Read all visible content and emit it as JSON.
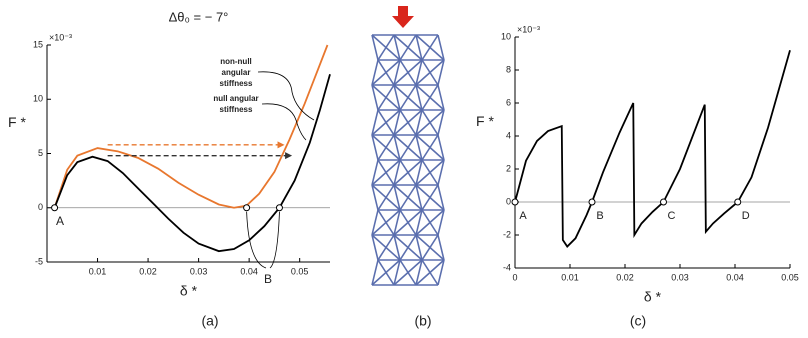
{
  "panels": [
    "(a)",
    "(b)",
    "(c)"
  ],
  "chart_data": [
    {
      "type": "line",
      "title": "Δθ₀ = − 7°",
      "y_multiplier": "×10⁻³",
      "xlabel": "δ *",
      "ylabel": "F *",
      "xlim": [
        0,
        0.056
      ],
      "ylim": [
        -5,
        15
      ],
      "xticks": [
        0.01,
        0.02,
        0.03,
        0.04,
        0.05
      ],
      "yticks": [
        -5,
        0,
        5,
        10,
        15
      ],
      "series": [
        {
          "color": "#e8772e",
          "x": [
            0.0015,
            0.004,
            0.006,
            0.01,
            0.014,
            0.018,
            0.022,
            0.026,
            0.03,
            0.034,
            0.037,
            0.0395,
            0.042,
            0.045,
            0.048,
            0.051,
            0.053,
            0.0555
          ],
          "values": [
            0,
            3.5,
            4.8,
            5.5,
            5.2,
            4.6,
            3.6,
            2.3,
            1.2,
            0.3,
            0,
            0.2,
            1.3,
            3.3,
            6.3,
            9.6,
            12,
            15
          ]
        },
        {
          "color": "#000000",
          "x": [
            0.0015,
            0.004,
            0.006,
            0.009,
            0.012,
            0.015,
            0.018,
            0.021,
            0.024,
            0.027,
            0.03,
            0.034,
            0.037,
            0.04,
            0.043,
            0.046,
            0.049,
            0.052,
            0.054,
            0.056
          ],
          "values": [
            0,
            3.0,
            4.2,
            4.7,
            4.3,
            3.2,
            1.8,
            0.4,
            -1.0,
            -2.3,
            -3.3,
            -4.0,
            -3.8,
            -3.0,
            -1.7,
            0,
            2.5,
            6.0,
            9.0,
            12.3
          ]
        }
      ],
      "arrows": [
        {
          "color": "#e8772e",
          "y": 5.8,
          "x": [
            0.012,
            0.047
          ]
        },
        {
          "color": "#333333",
          "y": 4.8,
          "x": [
            0.012,
            0.0485
          ]
        }
      ],
      "markers": {
        "x": [
          0.0015,
          0.0395,
          0.046
        ],
        "y": [
          0,
          0,
          0
        ]
      },
      "annotations": [
        "non-null",
        "angular",
        "stiffness",
        "null angular",
        "stiffness",
        "A",
        "B"
      ]
    },
    {
      "type": "line",
      "y_multiplier": "×10⁻³",
      "xlabel": "δ *",
      "ylabel": "F *",
      "xlim": [
        0,
        0.05
      ],
      "ylim": [
        -4,
        10
      ],
      "xticks": [
        0,
        0.01,
        0.02,
        0.03,
        0.04,
        0.05
      ],
      "yticks": [
        -4,
        -2,
        0,
        2,
        4,
        6,
        8,
        10
      ],
      "series": [
        {
          "color": "#000000",
          "x": [
            0,
            0.002,
            0.004,
            0.006,
            0.0085,
            0.0087,
            0.0095,
            0.011,
            0.013,
            0.014,
            0.016,
            0.019,
            0.0215,
            0.0217,
            0.023,
            0.025,
            0.027,
            0.03,
            0.0345,
            0.0347,
            0.036,
            0.038,
            0.0405,
            0.043,
            0.046,
            0.05
          ],
          "values": [
            0,
            2.5,
            3.7,
            4.3,
            4.6,
            -2.3,
            -2.7,
            -2.2,
            -0.8,
            0,
            1.8,
            4.2,
            6.0,
            -2.0,
            -1.3,
            -0.6,
            0,
            2.0,
            5.9,
            -1.8,
            -1.3,
            -0.7,
            0,
            1.5,
            4.5,
            9.2
          ]
        }
      ],
      "markers": {
        "x": [
          0,
          0.014,
          0.027,
          0.0405
        ],
        "y": [
          0,
          0,
          0,
          0
        ]
      },
      "annotations": [
        "A",
        "B",
        "C",
        "D"
      ]
    }
  ]
}
